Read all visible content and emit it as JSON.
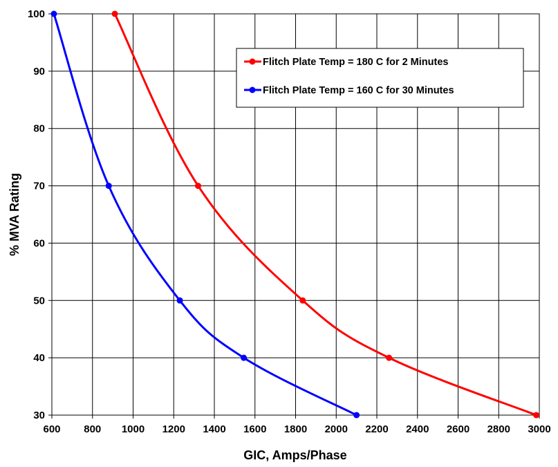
{
  "chart_data": {
    "type": "line",
    "title": "",
    "xlabel": "GIC, Amps/Phase",
    "ylabel": "% MVA Rating",
    "xlim": [
      600,
      3000
    ],
    "ylim": [
      30,
      100
    ],
    "x_ticks": [
      "600",
      "800",
      "1000",
      "1200",
      "1400",
      "1600",
      "1800",
      "2000",
      "2200",
      "2400",
      "2600",
      "2800",
      "3000"
    ],
    "y_ticks": [
      "30",
      "40",
      "50",
      "60",
      "70",
      "80",
      "90",
      "100"
    ],
    "grid": true,
    "legend_position": "top-right",
    "series": [
      {
        "name": "Flitch Plate Temp = 180 C for 2 Minutes",
        "color": "#ff0000",
        "x": [
          910,
          1320,
          1835,
          2260,
          2985
        ],
        "y": [
          100,
          70,
          50,
          40,
          30
        ]
      },
      {
        "name": "Flitch Plate Temp = 160 C for 30 Minutes",
        "color": "#0000ff",
        "x": [
          610,
          880,
          1230,
          1545,
          2100
        ],
        "y": [
          100,
          70,
          50,
          40,
          30
        ]
      }
    ]
  }
}
